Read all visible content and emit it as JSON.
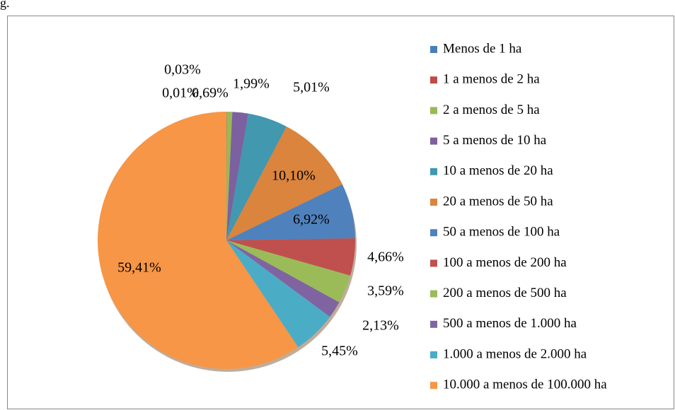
{
  "caption": "g.",
  "chart_data": {
    "type": "pie",
    "categories": [
      "Menos de 1 ha",
      "1 a menos de 2 ha",
      "2 a menos de 5 ha",
      "5 a menos de 10 ha",
      "10 a menos de 20 ha",
      "20 a menos de 50 ha",
      "50 a menos de 100 ha",
      "100 a menos de 200 ha",
      "200 a menos de 500 ha",
      "500 a menos de 1.000 ha",
      "1.000 a menos de 2.000 ha",
      "10.000 a menos de 100.000 ha"
    ],
    "values": [
      0.01,
      0.03,
      0.69,
      1.99,
      5.01,
      10.1,
      6.92,
      4.66,
      3.59,
      2.13,
      5.45,
      59.41
    ],
    "value_labels": [
      "0,01%",
      "0,03%",
      "0,69%",
      "1,99%",
      "5,01%",
      "10,10%",
      "6,92%",
      "4,66%",
      "3,59%",
      "2,13%",
      "5,45%",
      "59,41%"
    ],
    "colors": [
      "#4a7ebb",
      "#be4b48",
      "#98b954",
      "#7d60a0",
      "#4198af",
      "#db843d",
      "#4f81bd",
      "#c0504d",
      "#9bbb59",
      "#8064a2",
      "#4bacc6",
      "#f79646"
    ],
    "legend": "right"
  }
}
